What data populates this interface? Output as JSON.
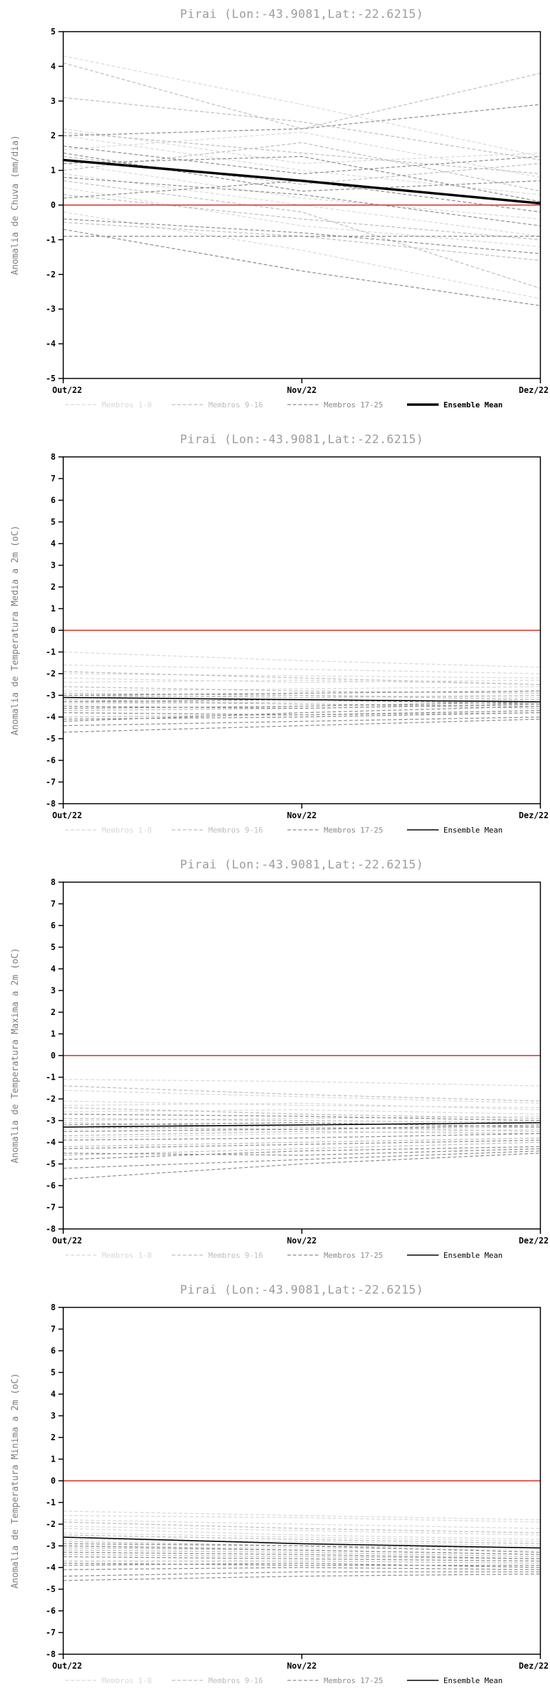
{
  "page": {
    "background": "#ffffff",
    "accent_zero_line": "#e0463e",
    "member_group_colors": [
      "#d8d8d8",
      "#bcbcbc",
      "#8a8a8a"
    ],
    "ensemble_mean_color": "#000000",
    "title_color": "#9c9c9c"
  },
  "chart_data": [
    {
      "type": "line",
      "title": "Pirai (Lon:-43.9081,Lat:-22.6215)",
      "ylabel": "Anomalia de Chuva (mm/dia)",
      "ylim": [
        -5,
        5
      ],
      "ytick_step": 1,
      "x_categories": [
        "Out/22",
        "Nov/22",
        "Dez/22"
      ],
      "grid": false,
      "zero_line": {
        "value": 0,
        "color": "#e0463e"
      },
      "groups": [
        {
          "name": "Membros 1-8",
          "color": "#d8d8d8",
          "members": [
            [
              4.3,
              2.9,
              1.4
            ],
            [
              2.0,
              1.0,
              0.3
            ],
            [
              1.2,
              0.2,
              -0.4
            ],
            [
              0.5,
              -0.6,
              -1.2
            ],
            [
              -0.2,
              -1.3,
              -2.7
            ],
            [
              1.6,
              2.1,
              0.8
            ],
            [
              0.9,
              0.0,
              -0.9
            ],
            [
              2.2,
              1.2,
              1.5
            ]
          ]
        },
        {
          "name": "Membros 9-16",
          "color": "#bcbcbc",
          "members": [
            [
              4.1,
              2.2,
              3.8
            ],
            [
              3.1,
              2.4,
              1.3
            ],
            [
              2.1,
              1.5,
              0.9
            ],
            [
              1.0,
              1.8,
              0.4
            ],
            [
              0.3,
              -0.4,
              -1.0
            ],
            [
              -0.5,
              -0.9,
              -1.6
            ],
            [
              1.4,
              0.6,
              1.2
            ],
            [
              0.7,
              -0.2,
              -2.4
            ]
          ]
        },
        {
          "name": "Membros 17-25",
          "color": "#8a8a8a",
          "members": [
            [
              2.0,
              2.2,
              2.9
            ],
            [
              1.7,
              0.9,
              1.4
            ],
            [
              1.2,
              1.4,
              0.1
            ],
            [
              0.8,
              0.3,
              -0.6
            ],
            [
              0.2,
              0.7,
              -0.2
            ],
            [
              -0.4,
              -0.8,
              -1.4
            ],
            [
              -0.9,
              -0.9,
              -0.9
            ],
            [
              1.5,
              0.4,
              0.7
            ],
            [
              -0.7,
              -1.9,
              -2.9
            ]
          ]
        }
      ],
      "ensemble_mean": {
        "name": "Ensemble Mean",
        "color": "#000000",
        "width": 3.5,
        "values": [
          1.3,
          0.7,
          0.05
        ]
      },
      "legend": [
        {
          "label": "Membros 1-8",
          "color": "#d8d8d8",
          "dash": true,
          "width": 1.2,
          "bold": false
        },
        {
          "label": "Membros 9-16",
          "color": "#bcbcbc",
          "dash": true,
          "width": 1.2,
          "bold": false
        },
        {
          "label": "Membros 17-25",
          "color": "#8a8a8a",
          "dash": true,
          "width": 1.2,
          "bold": false
        },
        {
          "label": "Ensemble Mean",
          "color": "#000000",
          "dash": false,
          "width": 3.5,
          "bold": true
        }
      ]
    },
    {
      "type": "line",
      "title": "Pirai (Lon:-43.9081,Lat:-22.6215)",
      "ylabel": "Anomalia de Temperatura Media a 2m (oC)",
      "ylim": [
        -8,
        8
      ],
      "ytick_step": 1,
      "x_categories": [
        "Out/22",
        "Nov/22",
        "Dez/22"
      ],
      "grid": false,
      "zero_line": {
        "value": 0,
        "color": "#e0463e"
      },
      "groups": [
        {
          "name": "Membros 1-8",
          "color": "#d8d8d8",
          "members": [
            [
              -1.0,
              -1.4,
              -1.7
            ],
            [
              -1.6,
              -1.8,
              -2.0
            ],
            [
              -2.0,
              -2.1,
              -2.2
            ],
            [
              -2.4,
              -2.3,
              -2.5
            ],
            [
              -2.8,
              -2.7,
              -2.6
            ],
            [
              -3.1,
              -3.0,
              -3.1
            ],
            [
              -3.4,
              -3.3,
              -3.2
            ],
            [
              -2.2,
              -2.4,
              -2.3
            ]
          ]
        },
        {
          "name": "Membros 9-16",
          "color": "#bcbcbc",
          "members": [
            [
              -1.9,
              -2.2,
              -2.5
            ],
            [
              -2.6,
              -2.8,
              -2.9
            ],
            [
              -3.0,
              -3.1,
              -3.0
            ],
            [
              -3.3,
              -3.4,
              -3.5
            ],
            [
              -3.7,
              -3.6,
              -3.4
            ],
            [
              -4.0,
              -3.9,
              -3.8
            ],
            [
              -2.9,
              -3.0,
              -3.2
            ],
            [
              -3.2,
              -3.4,
              -3.6
            ]
          ]
        },
        {
          "name": "Membros 17-25",
          "color": "#8a8a8a",
          "members": [
            [
              -3.5,
              -3.6,
              -3.4
            ],
            [
              -3.8,
              -3.9,
              -3.7
            ],
            [
              -4.1,
              -4.0,
              -3.8
            ],
            [
              -4.4,
              -4.2,
              -4.0
            ],
            [
              -4.7,
              -4.4,
              -4.1
            ],
            [
              -3.0,
              -2.9,
              -2.8
            ],
            [
              -3.6,
              -3.5,
              -3.3
            ],
            [
              -4.2,
              -3.8,
              -3.5
            ],
            [
              -3.3,
              -3.2,
              -3.4
            ]
          ]
        }
      ],
      "ensemble_mean": {
        "name": "Ensemble Mean",
        "color": "#000000",
        "width": 1.6,
        "values": [
          -3.1,
          -3.2,
          -3.3
        ]
      },
      "legend": [
        {
          "label": "Membros 1-8",
          "color": "#d8d8d8",
          "dash": true,
          "width": 1.2,
          "bold": false
        },
        {
          "label": "Membros 9-16",
          "color": "#bcbcbc",
          "dash": true,
          "width": 1.2,
          "bold": false
        },
        {
          "label": "Membros 17-25",
          "color": "#8a8a8a",
          "dash": true,
          "width": 1.2,
          "bold": false
        },
        {
          "label": "Ensemble Mean",
          "color": "#000000",
          "dash": false,
          "width": 1.6,
          "bold": false
        }
      ]
    },
    {
      "type": "line",
      "title": "Pirai (Lon:-43.9081,Lat:-22.6215)",
      "ylabel": "Anomalia de Temperatura Maxima a 2m (oC)",
      "ylim": [
        -8,
        8
      ],
      "ytick_step": 1,
      "x_categories": [
        "Out/22",
        "Nov/22",
        "Dez/22"
      ],
      "grid": false,
      "zero_line": {
        "value": 0,
        "color": "#e0463e"
      },
      "groups": [
        {
          "name": "Membros 1-8",
          "color": "#d8d8d8",
          "members": [
            [
              -1.1,
              -1.2,
              -1.4
            ],
            [
              -1.6,
              -1.9,
              -2.2
            ],
            [
              -2.1,
              -2.3,
              -2.4
            ],
            [
              -2.6,
              -2.5,
              -2.7
            ],
            [
              -3.0,
              -2.9,
              -2.8
            ],
            [
              -3.4,
              -3.2,
              -3.1
            ],
            [
              -3.8,
              -3.6,
              -3.4
            ],
            [
              -2.3,
              -2.2,
              -2.5
            ]
          ]
        },
        {
          "name": "Membros 9-16",
          "color": "#bcbcbc",
          "members": [
            [
              -1.4,
              -1.8,
              -2.1
            ],
            [
              -2.4,
              -2.7,
              -2.9
            ],
            [
              -2.9,
              -3.0,
              -3.1
            ],
            [
              -3.3,
              -3.4,
              -3.3
            ],
            [
              -3.7,
              -3.5,
              -3.6
            ],
            [
              -4.2,
              -4.0,
              -3.8
            ],
            [
              -4.6,
              -4.3,
              -4.0
            ],
            [
              -3.1,
              -3.3,
              -3.5
            ]
          ]
        },
        {
          "name": "Membros 17-25",
          "color": "#8a8a8a",
          "members": [
            [
              -4.8,
              -4.4,
              -4.2
            ],
            [
              -5.2,
              -4.8,
              -4.4
            ],
            [
              -5.7,
              -5.0,
              -4.5
            ],
            [
              -4.5,
              -4.6,
              -4.3
            ],
            [
              -3.5,
              -3.4,
              -3.2
            ],
            [
              -3.9,
              -3.8,
              -3.6
            ],
            [
              -2.7,
              -2.8,
              -3.0
            ],
            [
              -4.3,
              -4.1,
              -3.9
            ],
            [
              -3.2,
              -3.1,
              -3.3
            ]
          ]
        }
      ],
      "ensemble_mean": {
        "name": "Ensemble Mean",
        "color": "#000000",
        "width": 1.6,
        "values": [
          -3.3,
          -3.2,
          -3.1
        ]
      },
      "legend": [
        {
          "label": "Membros 1-8",
          "color": "#d8d8d8",
          "dash": true,
          "width": 1.2,
          "bold": false
        },
        {
          "label": "Membros 9-16",
          "color": "#bcbcbc",
          "dash": true,
          "width": 1.2,
          "bold": false
        },
        {
          "label": "Membros 17-25",
          "color": "#8a8a8a",
          "dash": true,
          "width": 1.2,
          "bold": false
        },
        {
          "label": "Ensemble Mean",
          "color": "#000000",
          "dash": false,
          "width": 1.6,
          "bold": false
        }
      ]
    },
    {
      "type": "line",
      "title": "Pirai (Lon:-43.9081,Lat:-22.6215)",
      "ylabel": "Anomalia de Temperatura Minima a 2m (oC)",
      "ylim": [
        -8,
        8
      ],
      "ytick_step": 1,
      "x_categories": [
        "Out/22",
        "Nov/22",
        "Dez/22"
      ],
      "grid": false,
      "zero_line": {
        "value": 0,
        "color": "#e0463e"
      },
      "groups": [
        {
          "name": "Membros 1-8",
          "color": "#d8d8d8",
          "members": [
            [
              -1.4,
              -1.6,
              -1.8
            ],
            [
              -1.8,
              -2.0,
              -2.2
            ],
            [
              -2.1,
              -2.3,
              -2.5
            ],
            [
              -2.4,
              -2.6,
              -2.8
            ],
            [
              -2.7,
              -2.8,
              -3.0
            ],
            [
              -3.0,
              -3.1,
              -3.2
            ],
            [
              -1.6,
              -1.7,
              -1.9
            ],
            [
              -2.2,
              -2.5,
              -2.7
            ]
          ]
        },
        {
          "name": "Membros 9-16",
          "color": "#bcbcbc",
          "members": [
            [
              -1.9,
              -2.2,
              -2.4
            ],
            [
              -2.5,
              -2.7,
              -2.9
            ],
            [
              -2.8,
              -3.0,
              -3.1
            ],
            [
              -3.1,
              -3.2,
              -3.4
            ],
            [
              -3.4,
              -3.5,
              -3.6
            ],
            [
              -3.7,
              -3.7,
              -3.8
            ],
            [
              -2.6,
              -2.9,
              -3.1
            ],
            [
              -3.2,
              -3.3,
              -3.5
            ]
          ]
        },
        {
          "name": "Membros 17-25",
          "color": "#8a8a8a",
          "members": [
            [
              -3.5,
              -3.6,
              -3.7
            ],
            [
              -3.8,
              -3.9,
              -3.9
            ],
            [
              -4.1,
              -4.0,
              -4.1
            ],
            [
              -4.4,
              -4.2,
              -4.2
            ],
            [
              -4.6,
              -4.4,
              -4.3
            ],
            [
              -2.9,
              -3.0,
              -3.3
            ],
            [
              -3.3,
              -3.4,
              -3.6
            ],
            [
              -3.9,
              -3.8,
              -4.0
            ],
            [
              -3.0,
              -3.2,
              -3.4
            ]
          ]
        }
      ],
      "ensemble_mean": {
        "name": "Ensemble Mean",
        "color": "#000000",
        "width": 1.6,
        "values": [
          -2.6,
          -2.9,
          -3.1
        ]
      },
      "legend": [
        {
          "label": "Membros 1-8",
          "color": "#d8d8d8",
          "dash": true,
          "width": 1.2,
          "bold": false
        },
        {
          "label": "Membros 9-16",
          "color": "#bcbcbc",
          "dash": true,
          "width": 1.2,
          "bold": false
        },
        {
          "label": "Membros 17-25",
          "color": "#8a8a8a",
          "dash": true,
          "width": 1.2,
          "bold": false
        },
        {
          "label": "Ensemble Mean",
          "color": "#000000",
          "dash": false,
          "width": 1.6,
          "bold": false
        }
      ]
    }
  ]
}
